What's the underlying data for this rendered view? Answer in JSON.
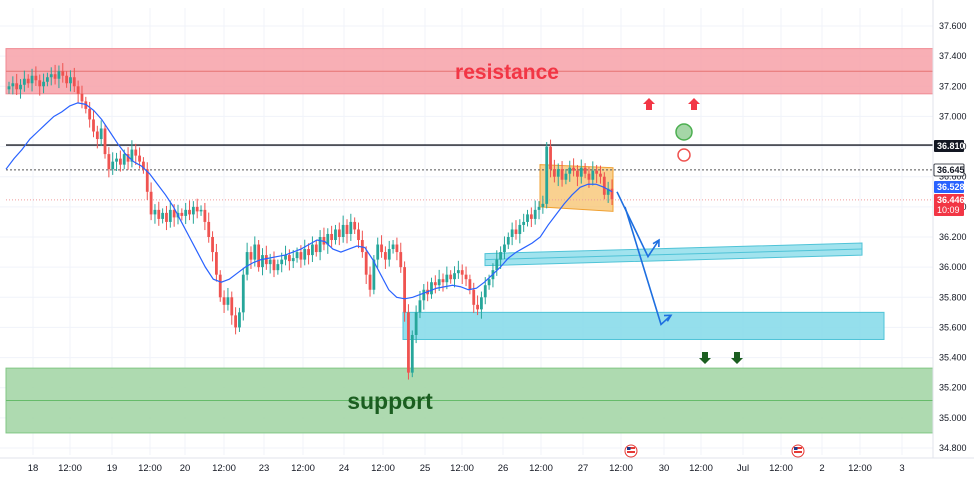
{
  "colors": {
    "up": "#26a69a",
    "down": "#ef5350",
    "ma": "#2962ff",
    "resistance_fill": "#f7a1a8",
    "support_fill": "#a5d6a7",
    "box_fill": "#f7c26b",
    "channel_fill": "#89dcea",
    "arrow_blue": "#1e6fe0",
    "arrow_red": "#f23645",
    "arrow_green": "#1b5e20",
    "resistance_text": "#f23645",
    "support_text": "#1b5e20"
  },
  "annotations": {
    "resistance_label": "resistance",
    "support_label": "support"
  },
  "chart_data": {
    "type": "candlestick",
    "y_axis": {
      "ticks": [
        "37.600",
        "37.400",
        "37.200",
        "37.000",
        "36.800",
        "36.600",
        "36.400",
        "36.200",
        "36.000",
        "35.800",
        "35.600",
        "35.400",
        "35.200",
        "35.000",
        "34.800"
      ],
      "ylim": [
        34.75,
        37.65
      ]
    },
    "x_axis": {
      "ticks": [
        "18",
        "12:00",
        "19",
        "12:00",
        "20",
        "12:00",
        "23",
        "12:00",
        "24",
        "12:00",
        "25",
        "12:00",
        "26",
        "12:00",
        "27",
        "12:00",
        "30",
        "12:00",
        "Jul",
        "12:00",
        "2",
        "12:00",
        "3"
      ]
    },
    "zones": {
      "resistance": {
        "from": 37.15,
        "to": 37.45
      },
      "support": {
        "from": 34.9,
        "to": 35.33
      },
      "consolidation_box": {
        "from": 36.38,
        "to": 36.68
      },
      "upper_channel": {
        "from": 36.08,
        "to": 36.15
      },
      "lower_channel": {
        "from": 35.5,
        "to": 35.7
      }
    },
    "horizontal_levels": [
      36.81,
      36.645
    ],
    "price_labels": [
      {
        "value": "36.810",
        "style": "black"
      },
      {
        "value": "36.645",
        "style": "white"
      },
      {
        "value": "36.528",
        "style": "blue"
      },
      {
        "value": "36.446",
        "style": "red",
        "sub": "10:09"
      }
    ],
    "series": [
      {
        "type": "candles",
        "close": [
          37.2,
          37.22,
          37.18,
          37.21,
          37.25,
          37.22,
          37.27,
          37.24,
          37.2,
          37.23,
          37.26,
          37.28,
          37.25,
          37.3,
          37.27,
          37.22,
          37.26,
          37.2,
          37.15,
          37.1,
          37.05,
          36.98,
          36.9,
          36.85,
          36.92,
          36.75,
          36.65,
          36.7,
          36.72,
          36.68,
          36.75,
          36.7,
          36.78,
          36.74,
          36.7,
          36.65,
          36.5,
          36.35,
          36.38,
          36.32,
          36.36,
          36.3,
          36.38,
          36.33,
          36.36,
          36.34,
          36.38,
          36.35,
          36.4,
          36.37,
          36.38,
          36.3,
          36.2,
          36.1,
          35.95,
          35.8,
          35.75,
          35.8,
          35.68,
          35.6,
          35.7,
          35.95,
          36.1,
          36.05,
          36.15,
          36.0,
          36.08,
          36.02,
          36.05,
          35.98,
          36.02,
          36.05,
          36.08,
          36.04,
          36.06,
          36.1,
          36.05,
          36.12,
          36.08,
          36.15,
          36.1,
          36.2,
          36.15,
          36.22,
          36.18,
          36.25,
          36.2,
          36.28,
          36.22,
          36.3,
          36.25,
          36.18,
          36.1,
          35.95,
          35.85,
          36.05,
          36.15,
          36.1,
          36.05,
          36.12,
          36.15,
          36.1,
          36.0,
          35.7,
          35.3,
          35.55,
          35.7,
          35.78,
          35.85,
          35.82,
          35.9,
          35.88,
          35.92,
          35.9,
          35.95,
          35.92,
          35.96,
          35.98,
          35.95,
          35.92,
          35.85,
          35.75,
          35.72,
          35.8,
          35.88,
          35.92,
          35.98,
          36.05,
          36.1,
          36.15,
          36.2,
          36.25,
          36.22,
          36.28,
          36.3,
          36.35,
          36.32,
          36.38,
          36.4,
          36.42,
          36.8,
          36.65,
          36.6,
          36.65,
          36.58,
          36.62,
          36.66,
          36.64,
          36.6,
          36.66,
          36.62,
          36.58,
          36.64,
          36.62,
          36.6,
          36.48,
          36.52,
          36.45
        ]
      },
      {
        "type": "ma",
        "name": "",
        "values": [
          36.65,
          36.72,
          36.78,
          36.85,
          36.9,
          36.95,
          37.0,
          37.03,
          37.07,
          37.09,
          37.08,
          37.04,
          36.98,
          36.9,
          36.82,
          36.75,
          36.7,
          36.67,
          36.62,
          36.55,
          36.48,
          36.4,
          36.3,
          36.2,
          36.1,
          36.0,
          35.92,
          35.9,
          35.92,
          35.96,
          36.0,
          36.03,
          36.05,
          36.06,
          36.07,
          36.08,
          36.1,
          36.12,
          36.15,
          36.18,
          36.17,
          36.12,
          36.1,
          36.12,
          36.14,
          36.13,
          36.05,
          35.95,
          35.85,
          35.8,
          35.79,
          35.8,
          35.82,
          35.84,
          35.86,
          35.87,
          35.88,
          35.87,
          35.85,
          35.86,
          35.9,
          35.95,
          36.0,
          36.06,
          36.1,
          36.13,
          36.16,
          36.2,
          36.28,
          36.35,
          36.42,
          36.48,
          36.53,
          36.55,
          36.55,
          36.53,
          36.5
        ]
      }
    ]
  }
}
